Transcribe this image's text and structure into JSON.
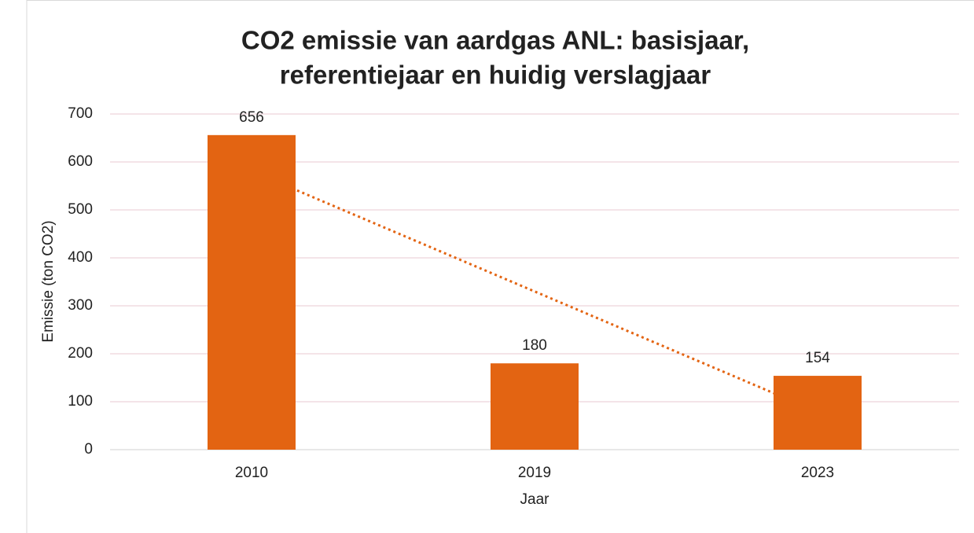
{
  "chart_data": {
    "type": "bar",
    "title": [
      "CO2 emissie van aardgas ANL: basisjaar,",
      "referentiejaar en huidig verslagjaar"
    ],
    "x_label": "Jaar",
    "y_label": "Emissie (ton CO2)",
    "categories": [
      "2010",
      "2019",
      "2023"
    ],
    "values": [
      656,
      180,
      154
    ],
    "color": "#e36412",
    "ylim": [
      0,
      700
    ],
    "yticks": [
      0,
      100,
      200,
      300,
      400,
      500,
      600,
      700
    ],
    "grid": true,
    "trendline": "linear"
  }
}
